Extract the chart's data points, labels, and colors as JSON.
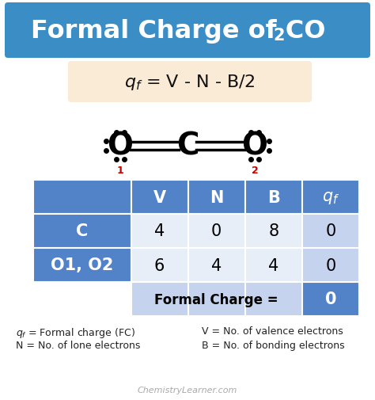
{
  "title_text": "Formal Charge of CO",
  "title_sub": "2",
  "title_bg": "#3a8dc5",
  "title_text_color": "#ffffff",
  "formula_bg": "#faebd7",
  "body_bg": "#ffffff",
  "table_header_bg": "#5282c8",
  "table_header_text": "#ffffff",
  "table_label_bg": "#5282c8",
  "table_label_text": "#ffffff",
  "table_data_bg": "#e8eef8",
  "table_last_col_bg": "#c5d3ee",
  "table_total_label_bg": "#c5d3ee",
  "table_total_val_bg": "#5282c8",
  "table_total_val_text": "#ffffff",
  "dot_color": "#000000",
  "number_color": "#cc0000",
  "legend_color": "#222222",
  "watermark": "ChemistryLearner.com",
  "watermark_color": "#aaaaaa"
}
